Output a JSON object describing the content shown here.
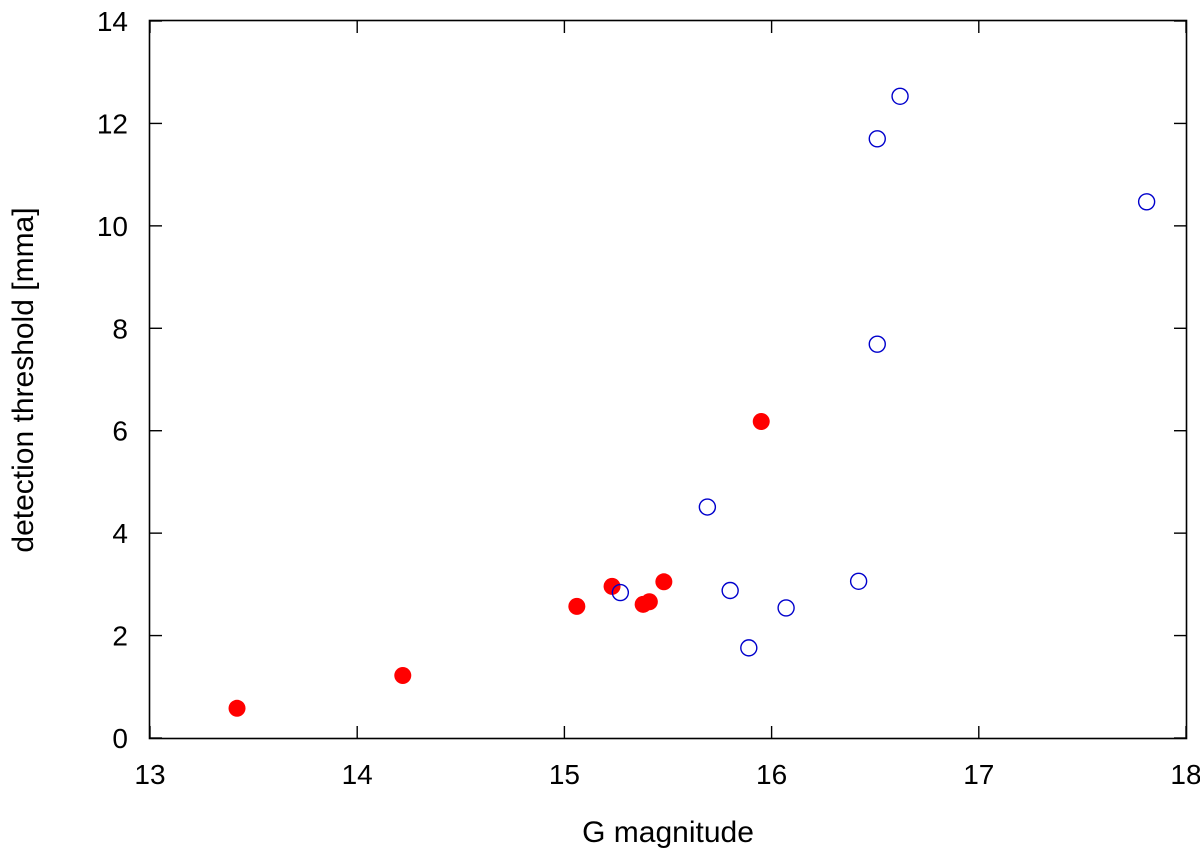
{
  "chart_data": {
    "type": "scatter",
    "title": "",
    "xlabel": "G magnitude",
    "ylabel": "detection threshold [mma]",
    "xlim": [
      13,
      18
    ],
    "ylim": [
      0,
      14
    ],
    "xticks": [
      "13",
      "14",
      "15",
      "16",
      "17",
      "18"
    ],
    "yticks": [
      "0",
      "2",
      "4",
      "6",
      "8",
      "10",
      "12",
      "14"
    ],
    "grid": false,
    "legend": "none",
    "series": [
      {
        "marker": "filled-circle",
        "color": "#ff0000",
        "points": [
          {
            "x": 13.42,
            "y": 0.58
          },
          {
            "x": 14.22,
            "y": 1.22
          },
          {
            "x": 15.06,
            "y": 2.57
          },
          {
            "x": 15.23,
            "y": 2.96
          },
          {
            "x": 15.38,
            "y": 2.61
          },
          {
            "x": 15.41,
            "y": 2.66
          },
          {
            "x": 15.48,
            "y": 3.05
          },
          {
            "x": 15.95,
            "y": 6.18
          }
        ]
      },
      {
        "marker": "open-circle",
        "color": "#0000cc",
        "points": [
          {
            "x": 15.27,
            "y": 2.84
          },
          {
            "x": 15.69,
            "y": 4.51
          },
          {
            "x": 15.8,
            "y": 2.88
          },
          {
            "x": 15.89,
            "y": 1.76
          },
          {
            "x": 16.07,
            "y": 2.54
          },
          {
            "x": 16.42,
            "y": 3.06
          },
          {
            "x": 16.51,
            "y": 7.69
          },
          {
            "x": 16.51,
            "y": 11.7
          },
          {
            "x": 16.62,
            "y": 12.53
          },
          {
            "x": 17.81,
            "y": 10.47
          }
        ]
      }
    ]
  }
}
